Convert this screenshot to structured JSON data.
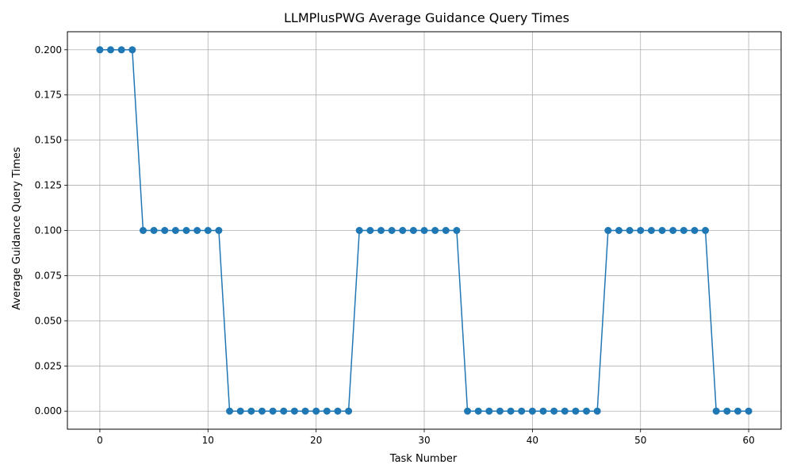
{
  "chart_data": {
    "type": "line",
    "title": "LLMPlusPWG Average Guidance Query Times",
    "xlabel": "Task Number",
    "ylabel": "Average Guidance Query Times",
    "xlim": [
      -3,
      63
    ],
    "ylim": [
      -0.01,
      0.21
    ],
    "xticks": [
      0,
      10,
      20,
      30,
      40,
      50,
      60
    ],
    "xtick_labels": [
      "0",
      "10",
      "20",
      "30",
      "40",
      "50",
      "60"
    ],
    "yticks": [
      0.0,
      0.025,
      0.05,
      0.075,
      0.1,
      0.125,
      0.15,
      0.175,
      0.2
    ],
    "ytick_labels": [
      "0.000",
      "0.025",
      "0.050",
      "0.075",
      "0.100",
      "0.125",
      "0.150",
      "0.175",
      "0.200"
    ],
    "grid": true,
    "legend": "none",
    "color": "#1f77b4",
    "marker": "circle",
    "x": [
      0,
      1,
      2,
      3,
      4,
      5,
      6,
      7,
      8,
      9,
      10,
      11,
      12,
      13,
      14,
      15,
      16,
      17,
      18,
      19,
      20,
      21,
      22,
      23,
      24,
      25,
      26,
      27,
      28,
      29,
      30,
      31,
      32,
      33,
      34,
      35,
      36,
      37,
      38,
      39,
      40,
      41,
      42,
      43,
      44,
      45,
      46,
      47,
      48,
      49,
      50,
      51,
      52,
      53,
      54,
      55,
      56,
      57,
      58,
      59,
      60
    ],
    "y": [
      0.2,
      0.2,
      0.2,
      0.2,
      0.1,
      0.1,
      0.1,
      0.1,
      0.1,
      0.1,
      0.1,
      0.1,
      0,
      0,
      0,
      0,
      0,
      0,
      0,
      0,
      0,
      0,
      0,
      0,
      0.1,
      0.1,
      0.1,
      0.1,
      0.1,
      0.1,
      0.1,
      0.1,
      0.1,
      0.1,
      0,
      0,
      0,
      0,
      0,
      0,
      0,
      0,
      0,
      0,
      0,
      0,
      0,
      0.1,
      0.1,
      0.1,
      0.1,
      0.1,
      0.1,
      0.1,
      0.1,
      0.1,
      0.1,
      0,
      0,
      0,
      0
    ]
  }
}
